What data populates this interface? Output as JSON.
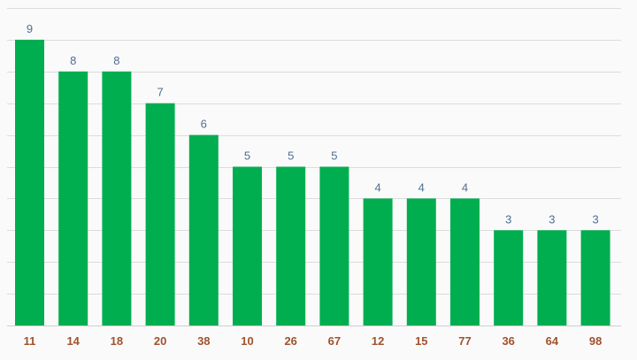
{
  "colors": {
    "bar": "#00ae4f",
    "value_label": "#4e6f92",
    "tick_label": "#a0522d",
    "grid": "#dcdcdc",
    "background": "#fafafa"
  },
  "chart_data": {
    "type": "bar",
    "title": "",
    "xlabel": "",
    "ylabel": "",
    "categories": [
      "11",
      "14",
      "18",
      "20",
      "38",
      "10",
      "26",
      "67",
      "12",
      "15",
      "77",
      "36",
      "64",
      "98"
    ],
    "values": [
      9,
      8,
      8,
      7,
      6,
      5,
      5,
      5,
      4,
      4,
      4,
      3,
      3,
      3
    ],
    "ylim": [
      0,
      10
    ],
    "grid": true,
    "data_labels": true,
    "legend": "none"
  }
}
